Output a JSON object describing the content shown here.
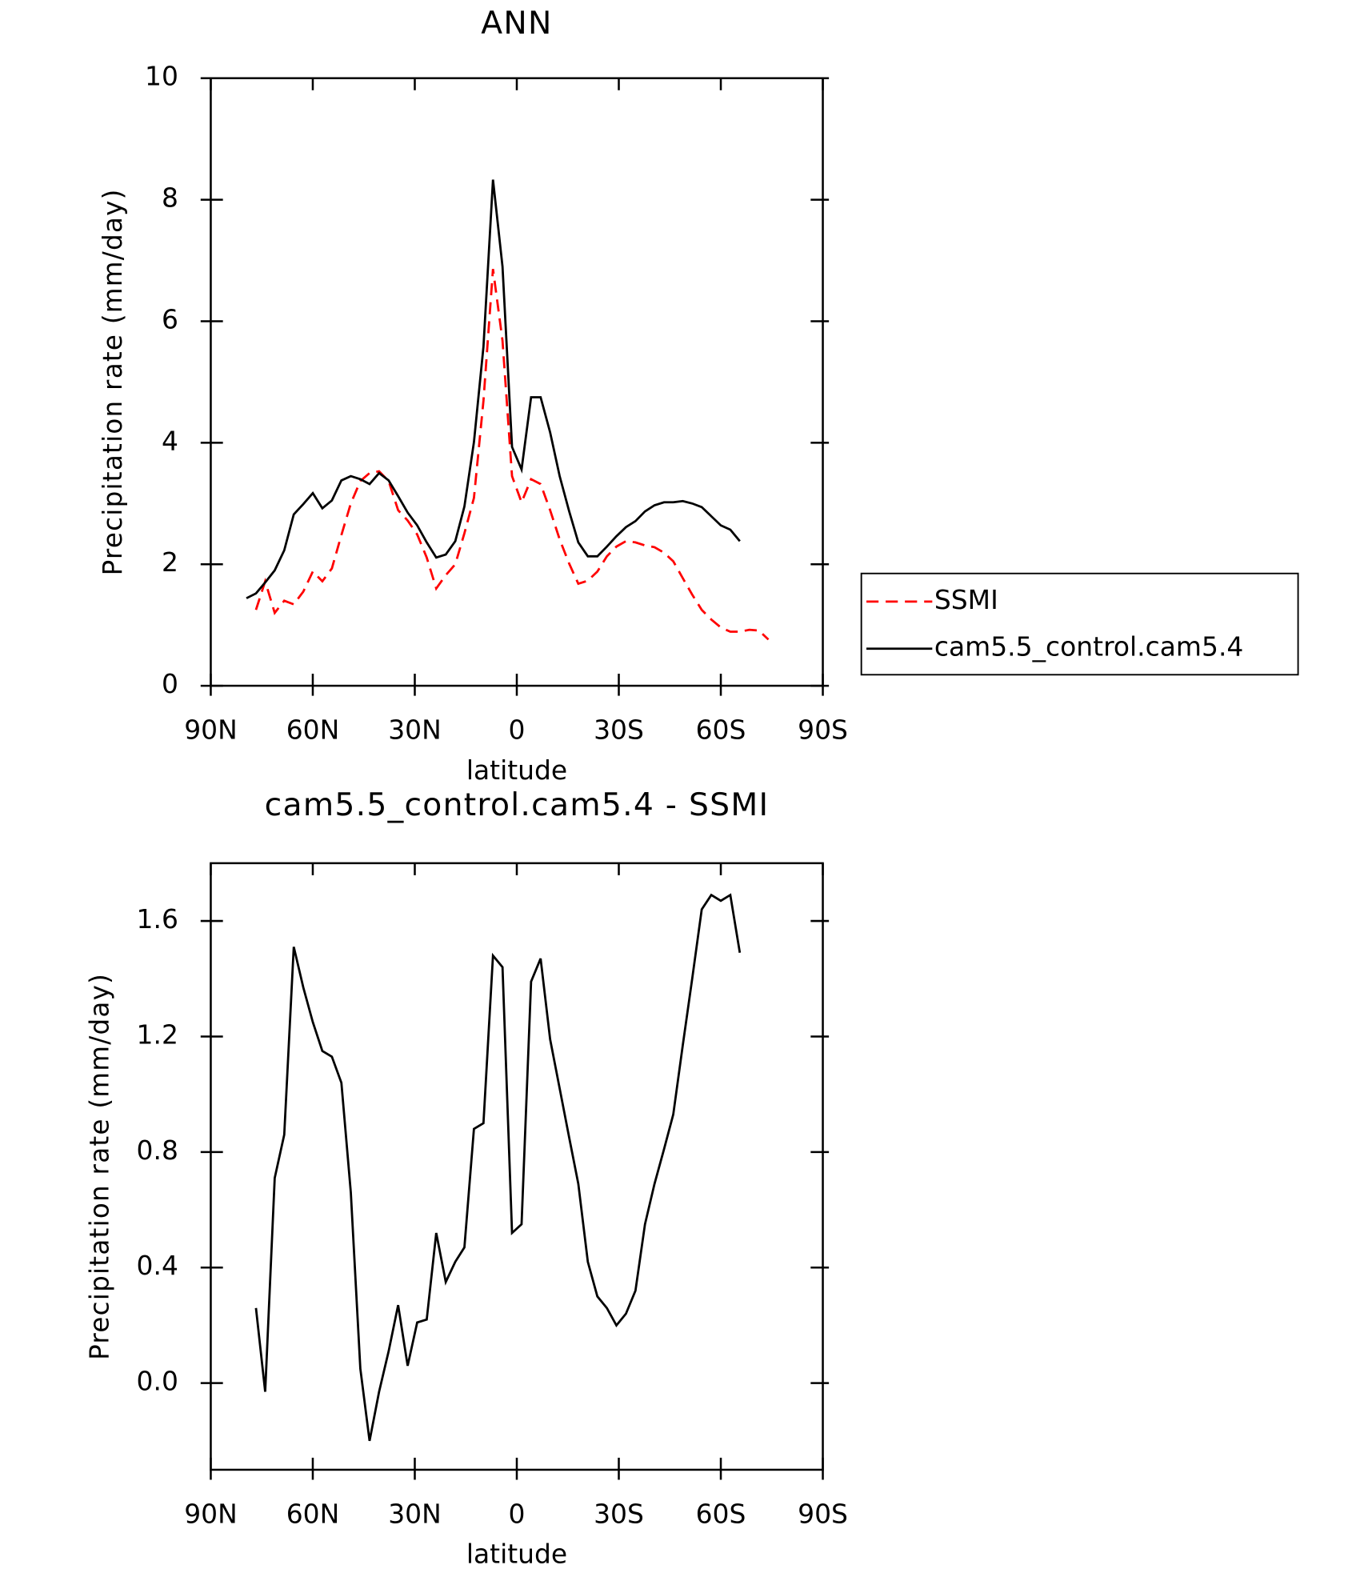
{
  "chart_data": [
    {
      "type": "line",
      "title": "ANN",
      "x_label": "latitude",
      "y_label": "Precipitation rate (mm/day)",
      "xlim": [
        90,
        -90
      ],
      "xticks": [
        {
          "value": 90,
          "label": "90N"
        },
        {
          "value": 60,
          "label": "60N"
        },
        {
          "value": 30,
          "label": "30N"
        },
        0,
        {
          "value": -30,
          "label": "30S"
        },
        {
          "value": -60,
          "label": "60S"
        },
        {
          "value": -90,
          "label": "90S"
        }
      ],
      "ylim": [
        0,
        10
      ],
      "yticks": [
        0,
        2,
        4,
        6,
        8,
        10
      ],
      "legend": "right",
      "series": [
        {
          "name": "SSMI",
          "color": "#ff0000",
          "dashed": true,
          "x": [
            76.7,
            74.0,
            71.2,
            68.4,
            65.6,
            62.8,
            60.0,
            57.2,
            54.4,
            51.6,
            48.8,
            46.0,
            43.3,
            40.5,
            37.7,
            34.9,
            32.1,
            29.3,
            26.5,
            23.7,
            20.9,
            18.1,
            15.4,
            12.6,
            9.8,
            7.0,
            4.2,
            1.4,
            -1.4,
            -4.2,
            -7.0,
            -9.8,
            -12.6,
            -15.4,
            -18.1,
            -20.9,
            -23.7,
            -26.5,
            -29.3,
            -32.1,
            -34.9,
            -37.7,
            -40.5,
            -43.3,
            -46.0,
            -48.8,
            -51.6,
            -54.4,
            -57.2,
            -60.0,
            -62.8,
            -65.6,
            -68.4,
            -71.2,
            -74.0
          ],
          "values": [
            1.25,
            1.72,
            1.2,
            1.4,
            1.34,
            1.55,
            1.88,
            1.72,
            1.93,
            2.48,
            3.0,
            3.37,
            3.5,
            3.53,
            3.37,
            2.89,
            2.72,
            2.49,
            2.11,
            1.6,
            1.82,
            2.0,
            2.51,
            3.09,
            4.69,
            6.86,
            5.68,
            3.45,
            3.02,
            3.4,
            3.32,
            2.89,
            2.41,
            2.01,
            1.68,
            1.73,
            1.88,
            2.13,
            2.29,
            2.38,
            2.36,
            2.31,
            2.28,
            2.19,
            2.05,
            1.77,
            1.5,
            1.25,
            1.09,
            0.96,
            0.89,
            0.89,
            0.92,
            0.91,
            0.76
          ]
        },
        {
          "name": "cam5.5_control.cam5.4",
          "color": "#000000",
          "dashed": false,
          "x": [
            79.5,
            76.7,
            74.0,
            71.2,
            68.4,
            65.6,
            62.8,
            60.0,
            57.2,
            54.4,
            51.6,
            48.8,
            46.0,
            43.3,
            40.5,
            37.7,
            34.9,
            32.1,
            29.3,
            26.5,
            23.7,
            20.9,
            18.1,
            15.4,
            12.6,
            9.8,
            7.0,
            4.2,
            1.4,
            -1.4,
            -4.2,
            -7.0,
            -9.8,
            -12.6,
            -15.4,
            -18.1,
            -20.9,
            -23.7,
            -26.5,
            -29.3,
            -32.1,
            -34.9,
            -37.7,
            -40.5,
            -43.3,
            -46.0,
            -48.8,
            -51.6,
            -54.4,
            -57.2,
            -60.0,
            -62.8,
            -65.6
          ],
          "values": [
            1.44,
            1.52,
            1.7,
            1.9,
            2.23,
            2.82,
            2.99,
            3.17,
            2.92,
            3.05,
            3.38,
            3.45,
            3.4,
            3.32,
            3.5,
            3.38,
            3.12,
            2.85,
            2.64,
            2.36,
            2.11,
            2.16,
            2.38,
            2.95,
            4.01,
            5.58,
            8.33,
            6.9,
            3.93,
            3.56,
            4.75,
            4.75,
            4.17,
            3.45,
            2.87,
            2.36,
            2.13,
            2.13,
            2.29,
            2.46,
            2.61,
            2.71,
            2.87,
            2.97,
            3.02,
            3.02,
            3.04,
            3.0,
            2.94,
            2.79,
            2.64,
            2.57,
            2.38
          ]
        }
      ]
    },
    {
      "type": "line",
      "title": "cam5.5_control.cam5.4 - SSMI",
      "x_label": "latitude",
      "y_label": "Precipitation rate (mm/day)",
      "xlim": [
        90,
        -90
      ],
      "xticks": [
        {
          "value": 90,
          "label": "90N"
        },
        {
          "value": 60,
          "label": "60N"
        },
        {
          "value": 30,
          "label": "30N"
        },
        0,
        {
          "value": -30,
          "label": "30S"
        },
        {
          "value": -60,
          "label": "60S"
        },
        {
          "value": -90,
          "label": "90S"
        }
      ],
      "ylim": [
        -0.3,
        1.8
      ],
      "yticks": [
        {
          "value": 0,
          "label": "0.0"
        },
        0.4,
        0.8,
        1.2,
        1.6
      ],
      "color": "#000000",
      "x": [
        76.7,
        74.0,
        71.2,
        68.4,
        65.6,
        62.8,
        60.0,
        57.2,
        54.4,
        51.6,
        48.8,
        46.0,
        43.3,
        40.5,
        37.7,
        34.9,
        32.1,
        29.3,
        26.5,
        23.7,
        20.9,
        18.1,
        15.4,
        12.6,
        9.8,
        7.0,
        4.2,
        1.4,
        -1.4,
        -4.2,
        -7.0,
        -9.8,
        -12.6,
        -15.4,
        -18.1,
        -20.9,
        -23.7,
        -26.5,
        -29.3,
        -32.1,
        -34.9,
        -37.7,
        -40.5,
        -43.3,
        -46.0,
        -48.8,
        -51.6,
        -54.4,
        -57.2,
        -60.0,
        -62.8,
        -65.6
      ],
      "values": [
        0.26,
        -0.03,
        0.71,
        0.86,
        1.51,
        1.37,
        1.25,
        1.15,
        1.13,
        1.04,
        0.66,
        0.05,
        -0.2,
        -0.03,
        0.11,
        0.27,
        0.06,
        0.21,
        0.22,
        0.52,
        0.35,
        0.42,
        0.47,
        0.88,
        0.9,
        1.48,
        1.44,
        0.52,
        0.55,
        1.39,
        1.47,
        1.19,
        1.02,
        0.85,
        0.69,
        0.42,
        0.3,
        0.26,
        0.2,
        0.24,
        0.32,
        0.55,
        0.69,
        0.81,
        0.93,
        1.17,
        1.4,
        1.64,
        1.69,
        1.67,
        1.69,
        1.49
      ]
    }
  ]
}
